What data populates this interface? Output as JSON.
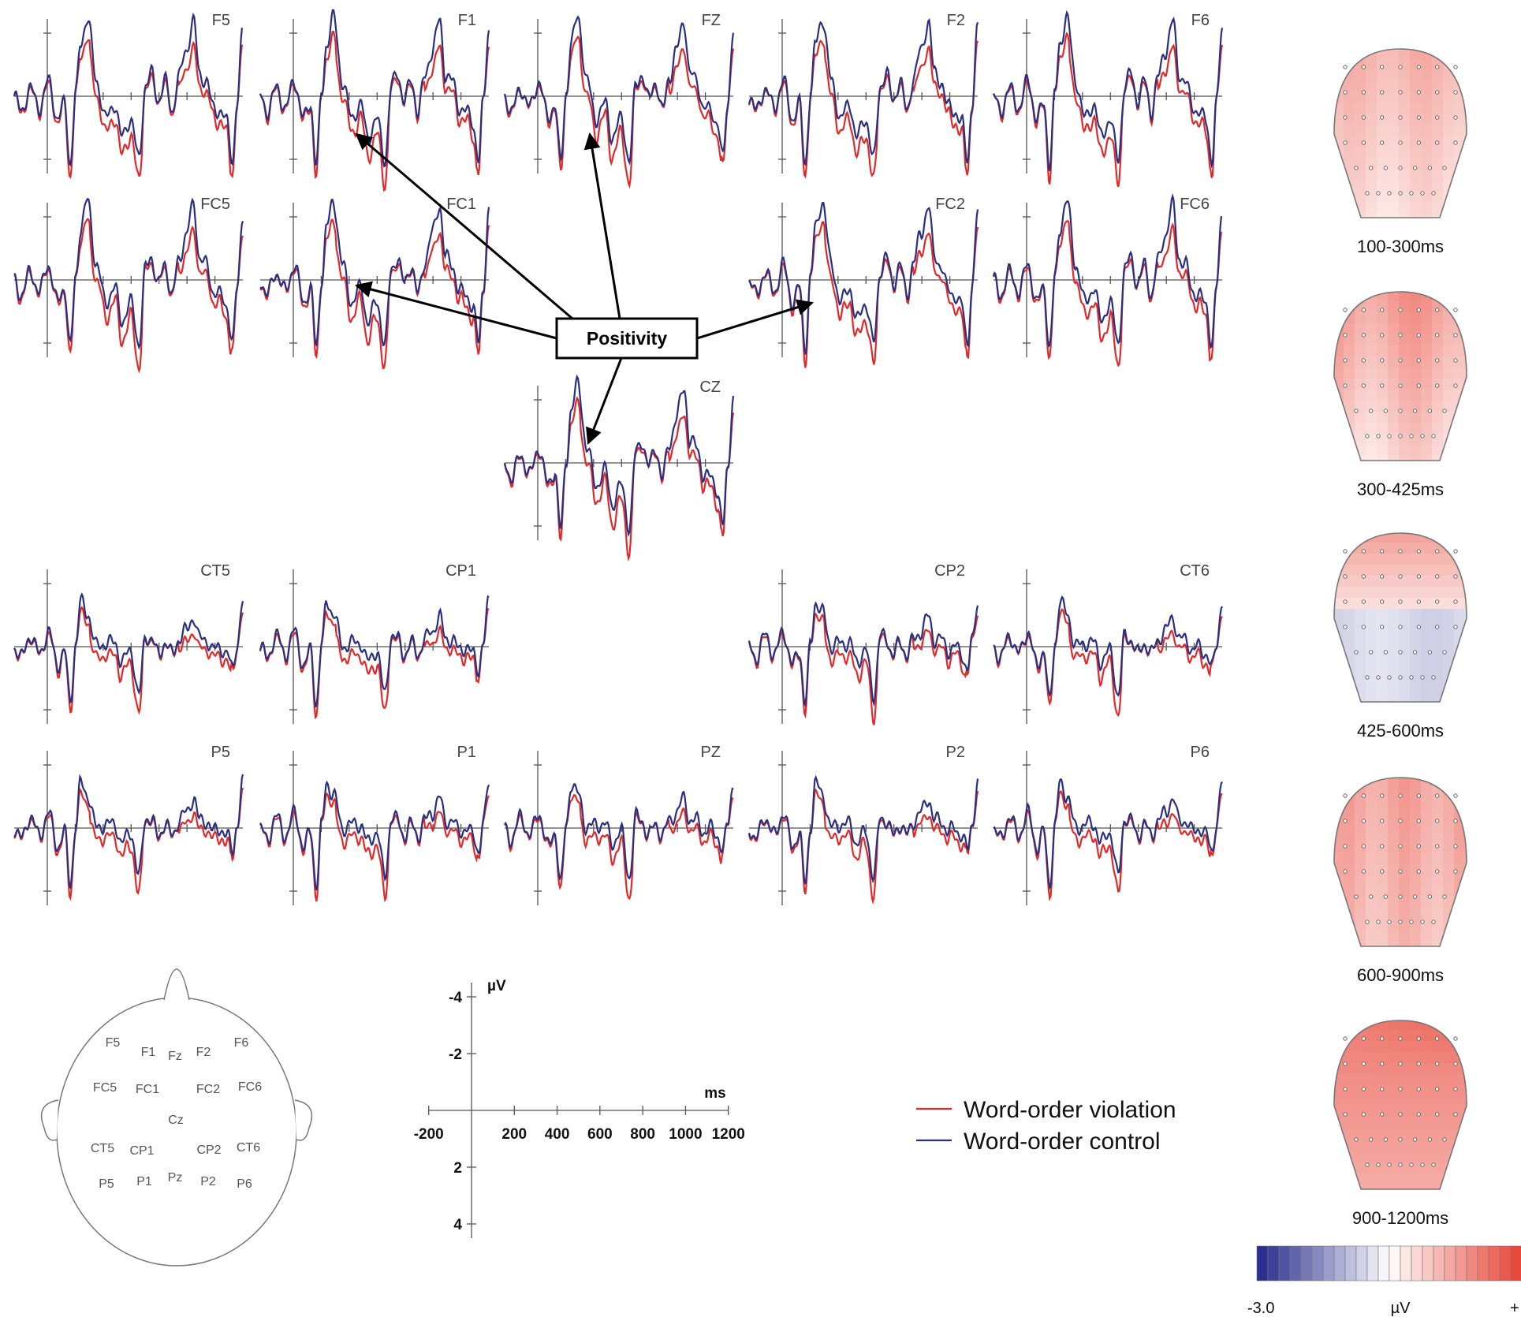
{
  "chart_data": {
    "type": "line",
    "x_range_ms": [
      -200,
      1200
    ],
    "y_range_uv": [
      -4,
      4
    ],
    "negative_up": true,
    "legend": [
      {
        "name": "Word-order violation",
        "color": "#e02a2a"
      },
      {
        "name": "Word-order control",
        "color": "#2a2f80"
      }
    ],
    "annotation": "Positivity",
    "electrodes": [
      "F5",
      "F1",
      "FZ",
      "F2",
      "F6",
      "FC5",
      "FC1",
      "FC2",
      "FC6",
      "CZ",
      "CT5",
      "CP1",
      "CP2",
      "CT6",
      "P5",
      "P1",
      "PZ",
      "P2",
      "P6"
    ],
    "scale": {
      "y_label": "µV",
      "x_label": "ms",
      "y_ticks": [
        "-4",
        "-2",
        "2",
        "4"
      ],
      "x_ticks": [
        "-200",
        "200",
        "400",
        "600",
        "800",
        "1000",
        "1200"
      ]
    },
    "head_layout": {
      "labels": [
        "F5",
        "F1",
        "Fz",
        "F2",
        "F6",
        "FC5",
        "FC1",
        "FC2",
        "FC6",
        "Cz",
        "CT5",
        "CP1",
        "CP2",
        "CT6",
        "P5",
        "P1",
        "Pz",
        "P2",
        "P6"
      ]
    },
    "topomaps": {
      "windows": [
        "100-300ms",
        "300-425ms",
        "425-600ms",
        "600-900ms",
        "900-1200ms"
      ],
      "colorbar": {
        "min_label": "-3.0",
        "unit": "µV",
        "max_label": "+",
        "low_color": "#2b2f8f",
        "mid_color": "#ffffff",
        "high_color": "#e8493a"
      }
    }
  }
}
